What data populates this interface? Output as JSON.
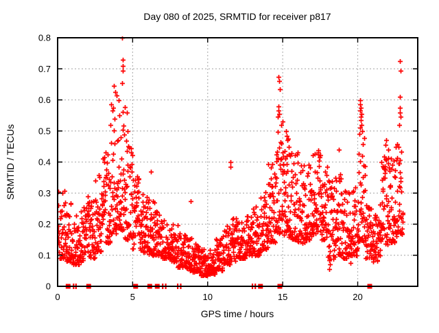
{
  "title": "Day 080 of 2025, SRMTID for receiver p817",
  "chart_data": {
    "type": "scatter",
    "title": "Day 080 of 2025, SRMTID for receiver p817",
    "xlabel": "GPS time / hours",
    "ylabel": "SRMTID / TECUs",
    "xlim": [
      0,
      24
    ],
    "ylim": [
      0,
      0.8
    ],
    "xticks": [
      0,
      5,
      10,
      15,
      20
    ],
    "yticks": [
      0,
      0.1,
      0.2,
      0.3,
      0.4,
      0.5,
      0.6,
      0.7,
      0.8
    ],
    "grid": true,
    "legend": "none",
    "marker": {
      "glyph": "+",
      "size": 7,
      "color": "#ff0000"
    },
    "colors": {
      "marker": "#ff0000",
      "grid": "#b4b4b4",
      "border": "#000000",
      "background": "#ffffff"
    },
    "seed": 42,
    "envelope_bins": [
      [
        0,
        0.5,
        40,
        0.09,
        0.31
      ],
      [
        0.5,
        1,
        40,
        0.08,
        0.27
      ],
      [
        1,
        1.5,
        40,
        0.07,
        0.23
      ],
      [
        1.5,
        2,
        40,
        0.08,
        0.26
      ],
      [
        2,
        2.5,
        40,
        0.09,
        0.3
      ],
      [
        2.5,
        3,
        40,
        0.11,
        0.36
      ],
      [
        3,
        3.5,
        42,
        0.14,
        0.44
      ],
      [
        3.5,
        4,
        44,
        0.17,
        0.55
      ],
      [
        4,
        4.5,
        42,
        0.18,
        0.58
      ],
      [
        4.5,
        5,
        40,
        0.15,
        0.47
      ],
      [
        5,
        5.5,
        40,
        0.12,
        0.36
      ],
      [
        5.5,
        6,
        40,
        0.11,
        0.3
      ],
      [
        6,
        6.5,
        40,
        0.1,
        0.28
      ],
      [
        6.5,
        7,
        40,
        0.1,
        0.24
      ],
      [
        7,
        7.5,
        40,
        0.09,
        0.22
      ],
      [
        7.5,
        8,
        40,
        0.08,
        0.2
      ],
      [
        8,
        8.5,
        40,
        0.06,
        0.17
      ],
      [
        8.5,
        9,
        40,
        0.05,
        0.16
      ],
      [
        9,
        9.5,
        42,
        0.045,
        0.14
      ],
      [
        9.5,
        10,
        42,
        0.035,
        0.12
      ],
      [
        10,
        10.5,
        42,
        0.04,
        0.13
      ],
      [
        10.5,
        11,
        40,
        0.05,
        0.16
      ],
      [
        11,
        11.5,
        40,
        0.07,
        0.2
      ],
      [
        11.5,
        12,
        40,
        0.08,
        0.22
      ],
      [
        12,
        12.5,
        40,
        0.09,
        0.21
      ],
      [
        12.5,
        13,
        40,
        0.1,
        0.23
      ],
      [
        13,
        13.5,
        40,
        0.1,
        0.26
      ],
      [
        13.5,
        14,
        42,
        0.12,
        0.31
      ],
      [
        14,
        14.5,
        42,
        0.14,
        0.4
      ],
      [
        14.5,
        15,
        42,
        0.17,
        0.5
      ],
      [
        15,
        15.5,
        42,
        0.16,
        0.48
      ],
      [
        15.5,
        16,
        40,
        0.15,
        0.44
      ],
      [
        16,
        16.5,
        40,
        0.14,
        0.4
      ],
      [
        16.5,
        17,
        42,
        0.15,
        0.42
      ],
      [
        17,
        17.5,
        42,
        0.17,
        0.45
      ],
      [
        17.5,
        18,
        40,
        0.14,
        0.4
      ],
      [
        18,
        18.5,
        38,
        0.08,
        0.37
      ],
      [
        18.5,
        19,
        40,
        0.1,
        0.38
      ],
      [
        19,
        19.5,
        38,
        0.09,
        0.32
      ],
      [
        19.5,
        20,
        38,
        0.1,
        0.33
      ],
      [
        20,
        20.5,
        42,
        0.14,
        0.48
      ],
      [
        20.5,
        21,
        38,
        0.09,
        0.28
      ],
      [
        21,
        21.5,
        38,
        0.08,
        0.24
      ],
      [
        21.5,
        22,
        42,
        0.13,
        0.42
      ],
      [
        22,
        22.5,
        42,
        0.14,
        0.42
      ],
      [
        22.5,
        23,
        42,
        0.16,
        0.46
      ]
    ],
    "outliers": [
      [
        4.3,
        0.8
      ],
      [
        4.33,
        0.73
      ],
      [
        4.34,
        0.71
      ],
      [
        4.32,
        0.695
      ],
      [
        4.31,
        0.655
      ],
      [
        3.75,
        0.645
      ],
      [
        3.86,
        0.625
      ],
      [
        3.92,
        0.615
      ],
      [
        4.05,
        0.6
      ],
      [
        3.58,
        0.585
      ],
      [
        3.68,
        0.575
      ],
      [
        3.64,
        0.565
      ],
      [
        4.62,
        0.56
      ],
      [
        4.66,
        0.5
      ],
      [
        3.5,
        0.52
      ],
      [
        3.8,
        0.54
      ],
      [
        4.1,
        0.55
      ],
      [
        14.72,
        0.675
      ],
      [
        14.76,
        0.66
      ],
      [
        14.79,
        0.635
      ],
      [
        14.7,
        0.58
      ],
      [
        14.73,
        0.565
      ],
      [
        14.76,
        0.555
      ],
      [
        14.68,
        0.545
      ],
      [
        15.0,
        0.53
      ],
      [
        14.92,
        0.52
      ],
      [
        15.2,
        0.5
      ],
      [
        15.26,
        0.485
      ],
      [
        15.32,
        0.47
      ],
      [
        20.15,
        0.6
      ],
      [
        20.18,
        0.585
      ],
      [
        20.21,
        0.575
      ],
      [
        20.16,
        0.565
      ],
      [
        20.23,
        0.555
      ],
      [
        20.19,
        0.545
      ],
      [
        20.22,
        0.535
      ],
      [
        20.26,
        0.52
      ],
      [
        20.16,
        0.51
      ],
      [
        20.31,
        0.5
      ],
      [
        20.12,
        0.49
      ],
      [
        22.82,
        0.725
      ],
      [
        22.86,
        0.695
      ],
      [
        22.8,
        0.61
      ],
      [
        22.79,
        0.575
      ],
      [
        22.83,
        0.56
      ],
      [
        22.86,
        0.545
      ],
      [
        22.75,
        0.52
      ],
      [
        21.9,
        0.47
      ],
      [
        21.86,
        0.455
      ],
      [
        22.02,
        0.44
      ],
      [
        11.5,
        0.4
      ],
      [
        11.53,
        0.385
      ],
      [
        18.76,
        0.44
      ],
      [
        8.85,
        0.275
      ],
      [
        6.22,
        0.37
      ],
      [
        0.05,
        0.305
      ],
      [
        0.32,
        0.3
      ],
      [
        9.8,
        0.038
      ],
      [
        9.92,
        0.042
      ],
      [
        10.12,
        0.045
      ],
      [
        18.1,
        0.055
      ],
      [
        18.16,
        0.07
      ],
      [
        19.52,
        0.075
      ],
      [
        21.02,
        0.08
      ]
    ],
    "zero_markers": {
      "squares_hours": [
        0.7,
        2.07,
        5.2,
        6.14,
        6.64,
        13.52,
        14.81,
        20.8
      ],
      "bars_hours": [
        1.06,
        1.22,
        7.0,
        7.2,
        8.0,
        8.2,
        12.98,
        13.17
      ]
    }
  }
}
